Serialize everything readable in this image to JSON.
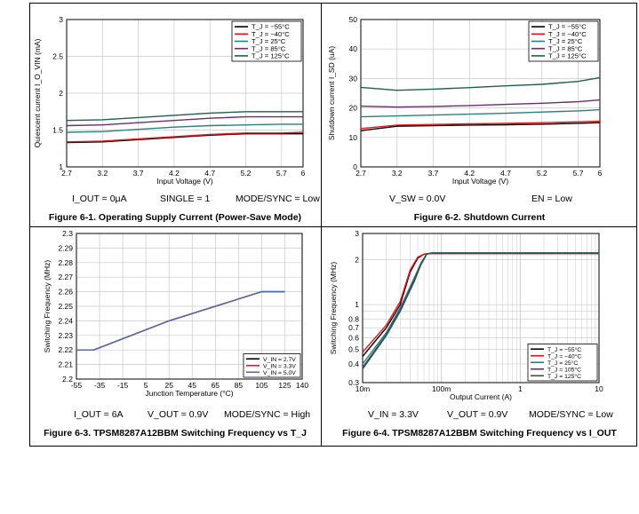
{
  "figures": [
    {
      "caption": "Figure 6-1. Operating Supply Current (Power-Save Mode)",
      "conditions": [
        "I_OUT = 0μA",
        "SINGLE = 1",
        "MODE/SYNC = Low"
      ]
    },
    {
      "caption": "Figure 6-2. Shutdown Current",
      "conditions": [
        "V_SW = 0.0V",
        "EN = Low"
      ]
    },
    {
      "caption": "Figure 6-3. TPSM8287A12BBM Switching Frequency vs T_J",
      "conditions": [
        "I_OUT = 6A",
        "V_OUT = 0.9V",
        "MODE/SYNC = High"
      ]
    },
    {
      "caption": "Figure 6-4. TPSM8287A12BBM Switching Frequency vs I_OUT",
      "conditions": [
        "V_IN = 3.3V",
        "V_OUT = 0.9V",
        "MODE/SYNC = Low"
      ]
    }
  ],
  "chart_data": [
    {
      "type": "line",
      "xlabel": "Input Voltage (V)",
      "ylabel": "Quiescent current I_O_VIN (mA)",
      "xlim": [
        2.7,
        6
      ],
      "ylim": [
        1,
        3
      ],
      "xticks": [
        "2.7",
        "3.2",
        "3.7",
        "4.2",
        "4.7",
        "5.2",
        "5.7",
        "6"
      ],
      "yticks": [
        "1",
        "1.5",
        "2",
        "2.5",
        "3"
      ],
      "grid": true,
      "legend_position": "top-right",
      "series": [
        {
          "name": "T_J = −55°C",
          "color": "#000000",
          "x": [
            2.7,
            3.2,
            3.7,
            4.2,
            4.7,
            5.2,
            5.7,
            6
          ],
          "y": [
            1.33,
            1.34,
            1.37,
            1.4,
            1.43,
            1.45,
            1.45,
            1.45
          ]
        },
        {
          "name": "T_J = −40°C",
          "color": "#e8141c",
          "x": [
            2.7,
            3.2,
            3.7,
            4.2,
            4.7,
            5.2,
            5.7,
            6
          ],
          "y": [
            1.34,
            1.35,
            1.38,
            1.41,
            1.44,
            1.46,
            1.46,
            1.47
          ]
        },
        {
          "name": "T_J = 25°C",
          "color": "#2a7f7f",
          "x": [
            2.7,
            3.2,
            3.7,
            4.2,
            4.7,
            5.2,
            5.7,
            6
          ],
          "y": [
            1.47,
            1.48,
            1.51,
            1.54,
            1.56,
            1.57,
            1.58,
            1.58
          ]
        },
        {
          "name": "T_J = 85°C",
          "color": "#6a2d6e",
          "x": [
            2.7,
            3.2,
            3.7,
            4.2,
            4.7,
            5.2,
            5.7,
            6
          ],
          "y": [
            1.56,
            1.57,
            1.6,
            1.63,
            1.66,
            1.68,
            1.68,
            1.68
          ]
        },
        {
          "name": "T_J = 125°C",
          "color": "#1f5f4f",
          "x": [
            2.7,
            3.2,
            3.7,
            4.2,
            4.7,
            5.2,
            5.7,
            6
          ],
          "y": [
            1.63,
            1.64,
            1.67,
            1.7,
            1.73,
            1.75,
            1.75,
            1.75
          ]
        }
      ]
    },
    {
      "type": "line",
      "xlabel": "Input Voltage (V)",
      "ylabel": "Shutdown current I_SD (uA)",
      "xlim": [
        2.7,
        6
      ],
      "ylim": [
        0,
        50
      ],
      "xticks": [
        "2.7",
        "3.2",
        "3.7",
        "4.2",
        "4.7",
        "5.2",
        "5.7",
        "6"
      ],
      "yticks": [
        "0",
        "10",
        "20",
        "30",
        "40",
        "50"
      ],
      "grid": true,
      "legend_position": "top-right",
      "series": [
        {
          "name": "T_J = −55°C",
          "color": "#000000",
          "x": [
            2.7,
            3.2,
            3.7,
            4.2,
            4.7,
            5.2,
            5.7,
            6
          ],
          "y": [
            12.3,
            13.8,
            14.0,
            14.2,
            14.3,
            14.5,
            14.8,
            15.0
          ]
        },
        {
          "name": "T_J = −40°C",
          "color": "#e8141c",
          "x": [
            2.7,
            3.2,
            3.7,
            4.2,
            4.7,
            5.2,
            5.7,
            6
          ],
          "y": [
            13.0,
            14.2,
            14.4,
            14.6,
            14.8,
            15.0,
            15.3,
            15.5
          ]
        },
        {
          "name": "T_J = 25°C",
          "color": "#2a7f7f",
          "x": [
            2.7,
            3.2,
            3.7,
            4.2,
            4.7,
            5.2,
            5.7,
            6
          ],
          "y": [
            17.0,
            17.3,
            17.6,
            17.9,
            18.2,
            18.6,
            19.0,
            19.4
          ]
        },
        {
          "name": "T_J = 85°C",
          "color": "#6a2d6e",
          "x": [
            2.7,
            3.2,
            3.7,
            4.2,
            4.7,
            5.2,
            5.7,
            6
          ],
          "y": [
            20.6,
            20.3,
            20.5,
            20.8,
            21.2,
            21.6,
            22.1,
            22.7
          ]
        },
        {
          "name": "T_J = 125°C",
          "color": "#1f5f4f",
          "x": [
            2.7,
            3.2,
            3.7,
            4.2,
            4.7,
            5.2,
            5.7,
            6
          ],
          "y": [
            27.0,
            26.0,
            26.4,
            26.9,
            27.5,
            28.0,
            29.0,
            30.3
          ]
        }
      ]
    },
    {
      "type": "line",
      "xlabel": "Junction Temperature (°C)",
      "ylabel": "Switching Frequency (MHz)",
      "xlim": [
        -55,
        140
      ],
      "ylim": [
        2.2,
        2.3
      ],
      "xticks": [
        "-55",
        "-35",
        "-15",
        "5",
        "25",
        "45",
        "65",
        "85",
        "105",
        "125",
        "140"
      ],
      "yticks": [
        "2.2",
        "2.21",
        "2.22",
        "2.23",
        "2.24",
        "2.25",
        "2.26",
        "2.27",
        "2.28",
        "2.29",
        "2.3"
      ],
      "grid": true,
      "legend_position": "bottom-right",
      "series": [
        {
          "name": "V_IN = 2.7V",
          "color": "#000000",
          "x": [
            -55,
            -40,
            25,
            105,
            125
          ],
          "y": [
            2.22,
            2.22,
            2.24,
            2.26,
            2.26
          ]
        },
        {
          "name": "V_IN = 3.3V",
          "color": "#e8141c",
          "x": [
            -55,
            -40,
            25,
            105,
            125
          ],
          "y": [
            2.22,
            2.22,
            2.24,
            2.26,
            2.26
          ]
        },
        {
          "name": "V_IN = 5.0V",
          "color": "#4a6fb5",
          "x": [
            -55,
            -40,
            25,
            105,
            125
          ],
          "y": [
            2.22,
            2.22,
            2.24,
            2.26,
            2.26
          ]
        }
      ]
    },
    {
      "type": "line",
      "xlabel": "Output Current (A)",
      "ylabel": "Switching Frequency (MHz)",
      "x_scale": "log",
      "y_scale": "log",
      "xlim": [
        0.01,
        10
      ],
      "ylim": [
        0.3,
        3
      ],
      "xticks": [
        "10m",
        "100m",
        "1",
        "10"
      ],
      "yticks": [
        "0.3",
        "0.4",
        "0.5",
        "0.6",
        "0.7",
        "0.8",
        "1",
        "2",
        "3"
      ],
      "grid": true,
      "legend_position": "bottom-right",
      "series": [
        {
          "name": "T_J = −55°C",
          "color": "#000000",
          "x": [
            0.01,
            0.02,
            0.03,
            0.04,
            0.05,
            0.06,
            0.07,
            10
          ],
          "y": [
            0.45,
            0.7,
            1.0,
            1.65,
            2.05,
            2.18,
            2.2,
            2.2
          ]
        },
        {
          "name": "T_J = −40°C",
          "color": "#e8141c",
          "x": [
            0.01,
            0.02,
            0.03,
            0.04,
            0.05,
            0.06,
            0.07,
            10
          ],
          "y": [
            0.48,
            0.73,
            1.05,
            1.7,
            2.08,
            2.18,
            2.2,
            2.2
          ]
        },
        {
          "name": "T_J = 25°C",
          "color": "#2a7f7f",
          "x": [
            0.01,
            0.02,
            0.03,
            0.045,
            0.055,
            0.065,
            0.075,
            10
          ],
          "y": [
            0.4,
            0.65,
            0.95,
            1.5,
            1.9,
            2.18,
            2.22,
            2.22
          ]
        },
        {
          "name": "T_J = 105°C",
          "color": "#6a2d6e",
          "x": [
            0.01,
            0.02,
            0.03,
            0.045,
            0.055,
            0.065,
            0.075,
            10
          ],
          "y": [
            0.38,
            0.63,
            0.92,
            1.45,
            1.88,
            2.18,
            2.22,
            2.22
          ]
        },
        {
          "name": "T_J = 125°C",
          "color": "#1f5f4f",
          "x": [
            0.01,
            0.02,
            0.03,
            0.045,
            0.055,
            0.065,
            0.075,
            10
          ],
          "y": [
            0.37,
            0.62,
            0.9,
            1.42,
            1.85,
            2.17,
            2.22,
            2.22
          ]
        }
      ]
    }
  ]
}
